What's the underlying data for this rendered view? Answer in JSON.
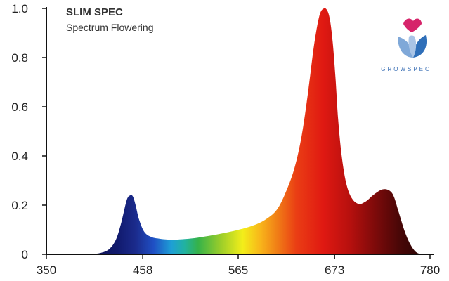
{
  "chart_data": {
    "type": "area",
    "title": "SLIM SPEC",
    "subtitle": "Spectrum Flowering",
    "xlabel": "",
    "ylabel": "",
    "xlim": [
      350,
      780
    ],
    "ylim": [
      0,
      1.0
    ],
    "x_ticks": [
      350,
      458,
      565,
      673,
      780
    ],
    "x_tick_labels": [
      "350",
      "458",
      "565",
      "673",
      "780"
    ],
    "y_ticks": [
      0,
      0.2,
      0.4,
      0.6,
      0.8,
      1.0
    ],
    "y_tick_labels": [
      "0",
      "0.2",
      "0.4",
      "0.6",
      "0.8",
      "1.0"
    ],
    "grid": false,
    "fill": "wavelength spectrum colors",
    "series": [
      {
        "x": [
          400,
          410,
          420,
          428,
          434,
          440,
          444,
          447,
          450,
          454,
          460,
          468,
          476,
          486,
          495,
          505,
          520,
          540,
          560,
          580,
          595,
          608,
          618,
          628,
          636,
          643,
          650,
          656,
          661,
          665,
          668,
          671,
          674,
          677,
          681,
          686,
          692,
          700,
          708,
          716,
          724,
          730,
          736,
          740,
          745,
          752,
          758,
          764,
          770
        ],
        "y": [
          0.0,
          0.005,
          0.02,
          0.06,
          0.13,
          0.22,
          0.24,
          0.235,
          0.2,
          0.14,
          0.09,
          0.07,
          0.064,
          0.06,
          0.06,
          0.062,
          0.068,
          0.08,
          0.095,
          0.115,
          0.14,
          0.18,
          0.25,
          0.35,
          0.48,
          0.65,
          0.85,
          0.97,
          1.0,
          0.99,
          0.95,
          0.86,
          0.72,
          0.55,
          0.4,
          0.29,
          0.23,
          0.205,
          0.215,
          0.24,
          0.26,
          0.265,
          0.255,
          0.23,
          0.17,
          0.09,
          0.04,
          0.01,
          0.0
        ]
      }
    ]
  },
  "logo": {
    "text": "GROWSPEC"
  }
}
